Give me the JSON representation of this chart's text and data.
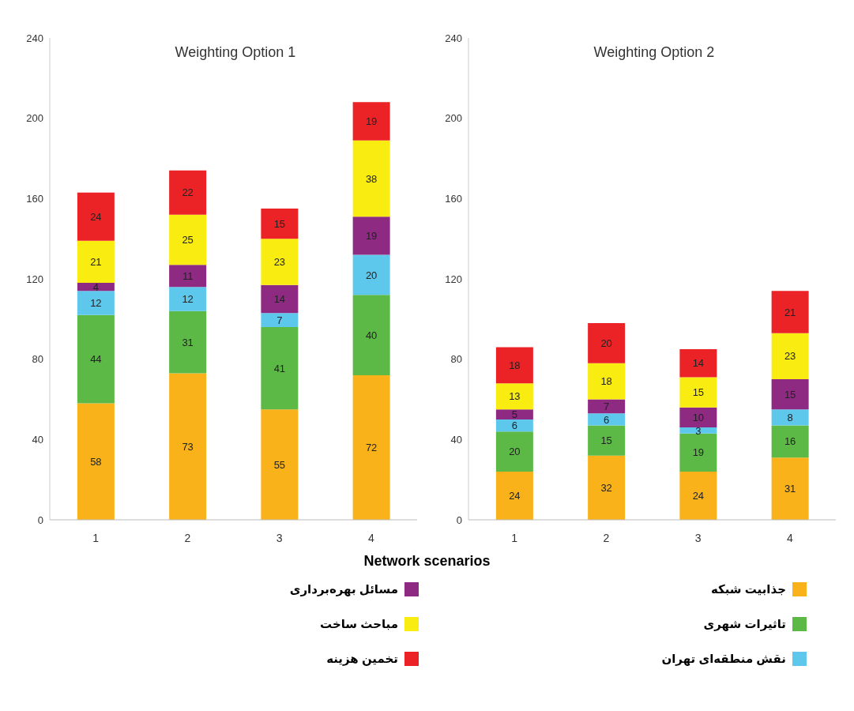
{
  "chart_data": [
    {
      "type": "bar",
      "title": "Weighting Option 1",
      "xlabel": "Network scenarios",
      "categories": [
        "1",
        "2",
        "3",
        "4"
      ],
      "stacked": true,
      "data_labels": true,
      "legend": "bottom",
      "ylim": [
        0,
        240
      ],
      "yticks": [
        0,
        40,
        80,
        120,
        160,
        200,
        240
      ],
      "grid": false,
      "series": [
        {
          "name": "جذابیت شبکه",
          "color": "#f9b21a",
          "values": [
            58,
            73,
            55,
            72
          ]
        },
        {
          "name": "تاثیرات شهری",
          "color": "#5cb946",
          "values": [
            44,
            31,
            41,
            40
          ]
        },
        {
          "name": "نقش منطقه‌ای تهران",
          "color": "#5ec8ec",
          "values": [
            12,
            12,
            7,
            20
          ]
        },
        {
          "name": "مسائل بهره‌برداری",
          "color": "#8e2a82",
          "values": [
            4,
            11,
            14,
            19
          ]
        },
        {
          "name": "مباحث ساخت",
          "color": "#f8ec10",
          "values": [
            21,
            25,
            23,
            38
          ]
        },
        {
          "name": "تخمین هزینه",
          "color": "#ec2326",
          "values": [
            24,
            22,
            15,
            19
          ]
        }
      ]
    },
    {
      "type": "bar",
      "title": "Weighting Option 2",
      "categories": [
        "1",
        "2",
        "3",
        "4"
      ],
      "stacked": true,
      "data_labels": true,
      "ylim": [
        0,
        240
      ],
      "yticks": [
        0,
        40,
        80,
        120,
        160,
        200,
        240
      ],
      "grid": false,
      "series": [
        {
          "color": "#f9b21a",
          "values": [
            24,
            32,
            24,
            31
          ]
        },
        {
          "color": "#5cb946",
          "values": [
            20,
            15,
            19,
            16
          ]
        },
        {
          "color": "#5ec8ec",
          "values": [
            6,
            6,
            3,
            8
          ]
        },
        {
          "color": "#8e2a82",
          "values": [
            5,
            7,
            10,
            15
          ]
        },
        {
          "color": "#f8ec10",
          "values": [
            13,
            18,
            15,
            23
          ]
        },
        {
          "color": "#ec2326",
          "values": [
            18,
            20,
            14,
            21
          ]
        }
      ]
    }
  ]
}
